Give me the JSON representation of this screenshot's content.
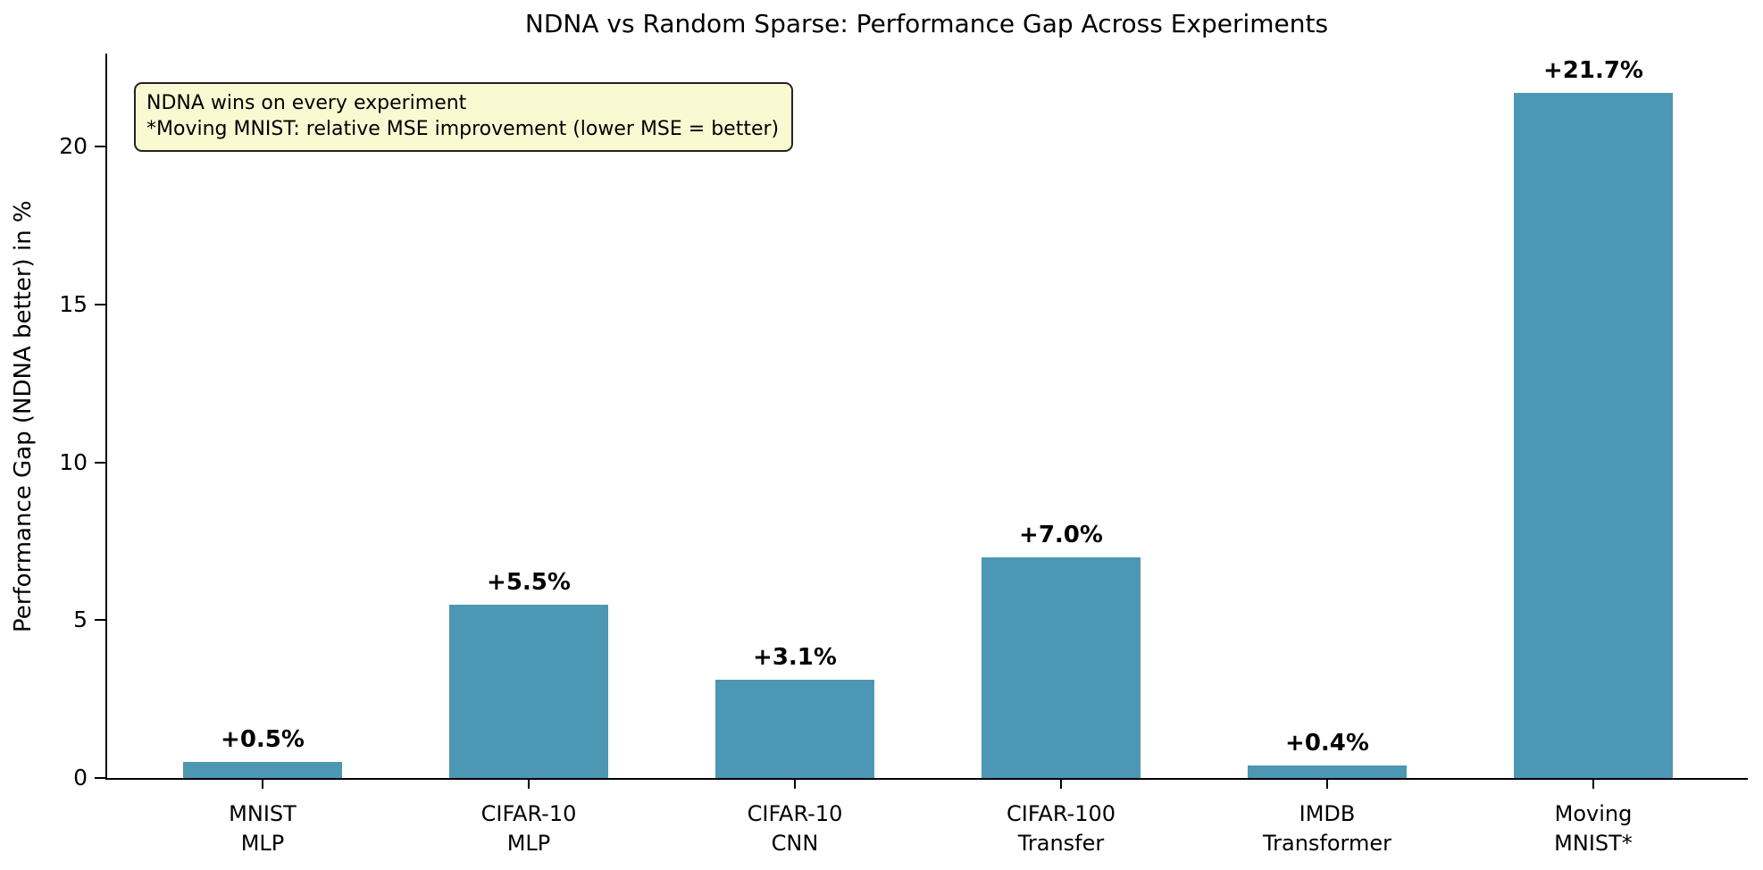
{
  "chart_data": {
    "type": "bar",
    "title": "NDNA vs Random Sparse: Performance Gap Across Experiments",
    "ylabel": "Performance Gap (NDNA better) in %",
    "xlabel": "",
    "categories": [
      "MNIST\nMLP",
      "CIFAR-10\nMLP",
      "CIFAR-10\nCNN",
      "CIFAR-100\nTransfer",
      "IMDB\nTransformer",
      "Moving\nMNIST*"
    ],
    "values": [
      0.5,
      5.5,
      3.1,
      7.0,
      0.4,
      21.7
    ],
    "bar_labels": [
      "+0.5%",
      "+5.5%",
      "+3.1%",
      "+7.0%",
      "+0.4%",
      "+21.7%"
    ],
    "yticks": [
      0,
      5,
      10,
      15,
      20
    ],
    "ylim": [
      0,
      23
    ],
    "grid": false,
    "legend_position": "none",
    "bar_color": "#4C97B4",
    "axis_color": "#000000",
    "annotation": {
      "lines": [
        "NDNA wins on every experiment",
        "*Moving MNIST: relative MSE improvement (lower MSE = better)"
      ],
      "bg_color": "#FAFAD2",
      "border_color": "#222222",
      "text_color": "#000000"
    }
  }
}
